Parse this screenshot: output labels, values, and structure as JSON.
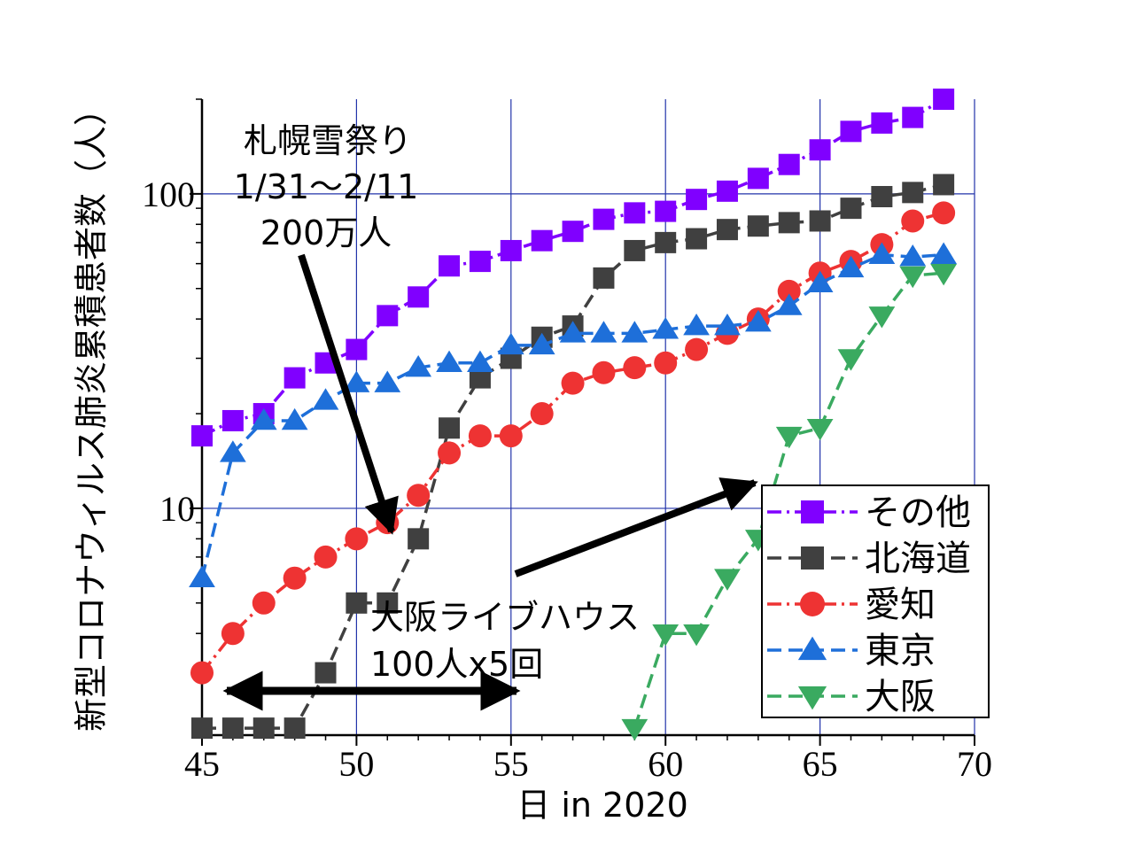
{
  "chart_data": {
    "type": "line",
    "xlabel": "日 in 2020",
    "ylabel": "新型コロナウィルス肺炎累積患者数（人）",
    "x_ticks": [
      45,
      50,
      55,
      60,
      65,
      70
    ],
    "y_ticks": [
      10,
      100
    ],
    "y_tick_labels": [
      "10",
      "100"
    ],
    "xlim": [
      45,
      70
    ],
    "ylim": [
      1.9,
      200
    ],
    "y_scale": "log",
    "grid": true,
    "legend_position": "bottom-right",
    "series": [
      {
        "name": "その他",
        "color": "#8000ff",
        "marker": "square",
        "line_style": "dash-dot",
        "x": [
          45,
          46,
          47,
          48,
          49,
          50,
          51,
          52,
          53,
          54,
          55,
          56,
          57,
          58,
          59,
          60,
          61,
          62,
          63,
          64,
          65,
          66,
          67,
          68,
          69
        ],
        "y": [
          17,
          19,
          20,
          26,
          29,
          32,
          41,
          47,
          59,
          61,
          66,
          71,
          76,
          83,
          87,
          88,
          96,
          102,
          112,
          124,
          138,
          158,
          168,
          175,
          200
        ]
      },
      {
        "name": "北海道",
        "color": "#404040",
        "marker": "square",
        "line_style": "dash",
        "x": [
          45,
          46,
          47,
          48,
          49,
          50,
          51,
          52,
          53,
          54,
          55,
          56,
          57,
          58,
          59,
          60,
          61,
          62,
          63,
          64,
          65,
          66,
          67,
          68,
          69
        ],
        "y": [
          2,
          2,
          2,
          2,
          3,
          5,
          5,
          8,
          18,
          26,
          30,
          35,
          38,
          54,
          66,
          70,
          72,
          77,
          79,
          81,
          82,
          90,
          98,
          101,
          107
        ]
      },
      {
        "name": "愛知",
        "color": "#ee3333",
        "marker": "circle",
        "line_style": "dash-dot",
        "x": [
          45,
          46,
          47,
          48,
          49,
          50,
          51,
          52,
          53,
          54,
          55,
          56,
          57,
          58,
          59,
          60,
          61,
          62,
          63,
          64,
          65,
          66,
          67,
          68,
          69
        ],
        "y": [
          3,
          4,
          5,
          6,
          7,
          8,
          9,
          11,
          15,
          17,
          17,
          20,
          25,
          27,
          28,
          29,
          32,
          36,
          40,
          49,
          56,
          61,
          69,
          82,
          87
        ]
      },
      {
        "name": "東京",
        "color": "#1e6fd9",
        "marker": "triangle-up",
        "line_style": "dash",
        "x": [
          45,
          46,
          47,
          48,
          49,
          50,
          51,
          52,
          53,
          54,
          55,
          56,
          57,
          58,
          59,
          60,
          61,
          62,
          63,
          64,
          65,
          66,
          67,
          68,
          69
        ],
        "y": [
          6,
          15,
          19,
          19,
          22,
          25,
          25,
          28,
          29,
          29,
          33,
          33,
          36,
          36,
          36,
          37,
          38,
          38,
          39,
          44,
          52,
          58,
          64,
          63,
          64
        ]
      },
      {
        "name": "大阪",
        "color": "#3aaa60",
        "marker": "triangle-down",
        "line_style": "dash",
        "x": [
          59,
          60,
          61,
          62,
          63,
          64,
          65,
          66,
          67,
          68,
          69
        ],
        "y": [
          2,
          4,
          4,
          6,
          8,
          17,
          18,
          30,
          41,
          55,
          56
        ]
      }
    ],
    "annotations": [
      {
        "lines": [
          "札幌雪祭り",
          "1/31～2/11",
          "200万人"
        ]
      },
      {
        "lines": [
          "大阪ライブハウス",
          "100人x5回"
        ]
      }
    ]
  }
}
